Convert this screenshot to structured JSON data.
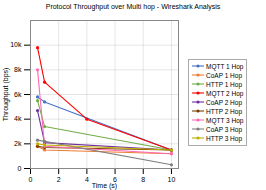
{
  "chart_data": {
    "type": "line",
    "title": "Protocol Throughput over Multi hop - Wireshark Analysis",
    "xlabel": "Time (s)",
    "ylabel": "Throughput (bps)",
    "series": [
      {
        "name": "MQTT 1 Hop",
        "color": "#4472C4",
        "marker": "o",
        "x": [
          0.5,
          1.0,
          10.0
        ],
        "values": [
          5800,
          5400,
          1500
        ]
      },
      {
        "name": "CoAP 1 Hop",
        "color": "#ED7D31",
        "marker": "o",
        "x": [
          0.5,
          1.0,
          10.0
        ],
        "values": [
          1800,
          1500,
          1200
        ]
      },
      {
        "name": "HTTP 1 Hop",
        "color": "#70AD47",
        "marker": "o",
        "x": [
          0.5,
          1.0,
          10.0
        ],
        "values": [
          5500,
          3400,
          1500
        ]
      },
      {
        "name": "MQTT 2 Hop",
        "color": "#FF0000",
        "marker": "o",
        "x": [
          0.5,
          1.0,
          4.0,
          10.0
        ],
        "values": [
          9800,
          7000,
          4000,
          1500
        ]
      },
      {
        "name": "CoAP 2 Hop",
        "color": "#7030A0",
        "marker": "o",
        "x": [
          0.5,
          1.0,
          10.0
        ],
        "values": [
          4700,
          2100,
          1500
        ]
      },
      {
        "name": "HTTP 2 Hop",
        "color": "#7B3F00",
        "marker": "o",
        "x": [
          0.5,
          1.0,
          10.0
        ],
        "values": [
          1800,
          1700,
          1500
        ]
      },
      {
        "name": "MQTT 3 Hop",
        "color": "#FF69B4",
        "marker": "o",
        "x": [
          0.5,
          1.0,
          10.0
        ],
        "values": [
          8000,
          1800,
          1200
        ]
      },
      {
        "name": "CoAP 3 Hop",
        "color": "#808080",
        "marker": "o",
        "x": [
          0.5,
          1.0,
          10.0
        ],
        "values": [
          2300,
          2200,
          300
        ]
      },
      {
        "name": "HTTP 3 Hop",
        "color": "#C0B000",
        "marker": "o",
        "x": [
          0.5,
          1.0,
          10.0
        ],
        "values": [
          2000,
          1900,
          1500
        ]
      }
    ],
    "xlim": [
      0,
      10.5
    ],
    "ylim": [
      0,
      12000
    ],
    "xticks": [
      0,
      2,
      4,
      6,
      8,
      10
    ],
    "yticks": [
      0,
      {
        "value": 2000,
        "label": "2k"
      },
      {
        "value": 4000,
        "label": "4k"
      },
      {
        "value": 6000,
        "label": "6k"
      },
      {
        "value": 8000,
        "label": "8k"
      },
      {
        "value": 10000,
        "label": "10k"
      }
    ],
    "grid": true,
    "legend": "right"
  }
}
